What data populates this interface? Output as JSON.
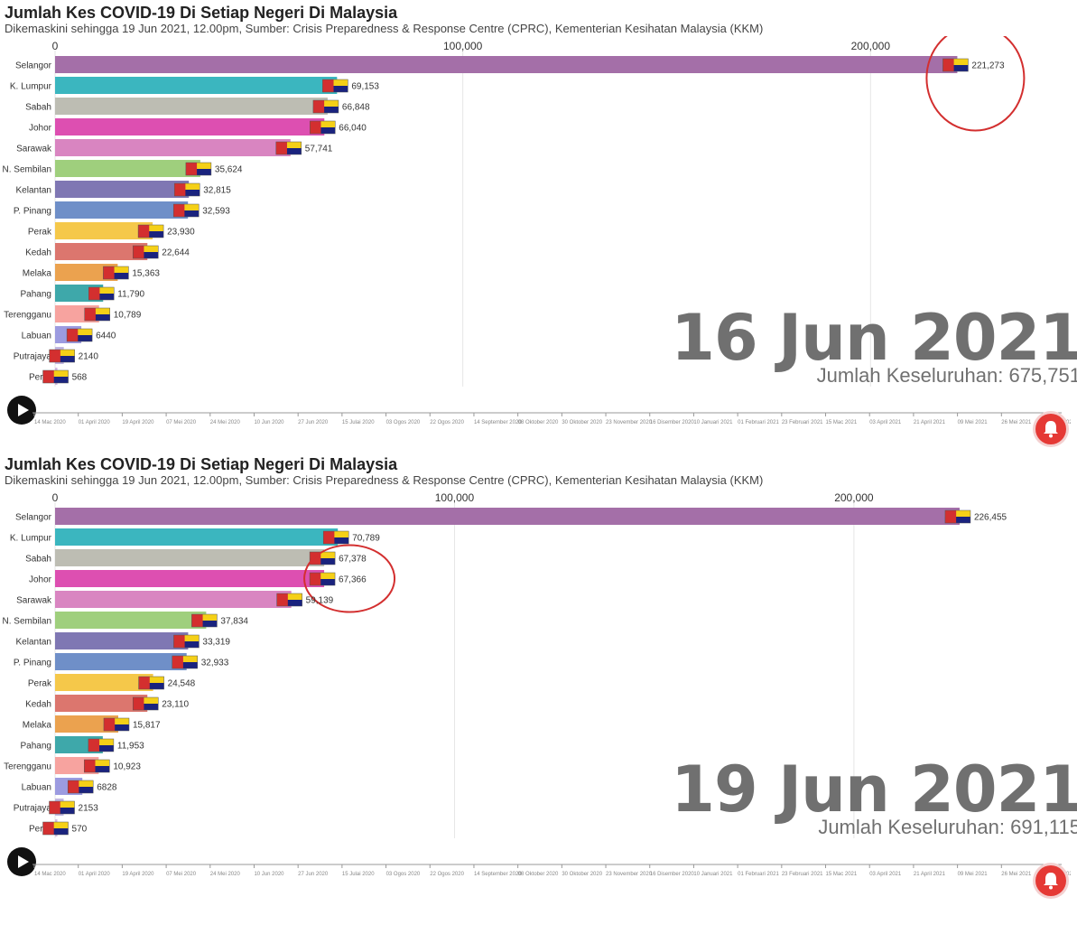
{
  "panels": [
    {
      "title": "Jumlah Kes COVID-19 Di Setiap Negeri Di Malaysia",
      "subtitle": "Dikemaskini sehingga 19 Jun 2021, 12.00pm, Sumber: Crisis Preparedness & Response Centre (CPRC), Kementerian Kesihatan Malaysia (KKM)",
      "date": "16 Jun 2021",
      "total": "Jumlah Keseluruhan: 675,751",
      "highlight": "Selangor"
    },
    {
      "title": "Jumlah Kes COVID-19 Di Setiap Negeri Di Malaysia",
      "subtitle": "Dikemaskini sehingga 19 Jun 2021, 12.00pm, Sumber: Crisis Preparedness & Response Centre (CPRC), Kementerian Kesihatan Malaysia (KKM)",
      "date": "19 Jun 2021",
      "total": "Jumlah Keseluruhan: 691,115",
      "highlight": "Johor"
    }
  ],
  "timeline_labels": [
    "14 Mac 2020",
    "01 April 2020",
    "19 April 2020",
    "07 Mei 2020",
    "24 Mei 2020",
    "10 Jun 2020",
    "27 Jun 2020",
    "15 Julai 2020",
    "03 Ogos 2020",
    "22 Ogos 2020",
    "14 September 2020",
    "08 Oktober 2020",
    "30 Oktober 2020",
    "23 November 2020",
    "16 Disember 2020",
    "10 Januari 2021",
    "01 Februari 2021",
    "23 Februari 2021",
    "15 Mac 2021",
    "03 April 2021",
    "21 April 2021",
    "09 Mei 2021",
    "26 Mei 2021",
    "12 Jun 2021"
  ],
  "colors": {
    "Selangor": "#a46fa8",
    "K. Lumpur": "#3bb6bf",
    "Sabah": "#bdbdb3",
    "Johor": "#dd4fb1",
    "Sarawak": "#d985c1",
    "N. Sembilan": "#9fcf7d",
    "Kelantan": "#7f77b3",
    "P. Pinang": "#6f8fc8",
    "Perak": "#f5c84a",
    "Kedah": "#dc766e",
    "Melaka": "#eba24f",
    "Pahang": "#3ea8aa",
    "Terengganu": "#f7a39f",
    "Labuan": "#9c9be0",
    "Putrajaya": "#c2b7e1",
    "Perlis": "#d5b9de",
    "highlight_circle": "#d32f2f",
    "bell": "#e53935"
  },
  "chart_data": [
    {
      "type": "bar",
      "orientation": "horizontal",
      "categories": [
        "Selangor",
        "K. Lumpur",
        "Sabah",
        "Johor",
        "Sarawak",
        "N. Sembilan",
        "Kelantan",
        "P. Pinang",
        "Perak",
        "Kedah",
        "Melaka",
        "Pahang",
        "Terengganu",
        "Labuan",
        "Putrajaya",
        "Perlis"
      ],
      "values": [
        221273,
        69153,
        66848,
        66040,
        57741,
        35624,
        32815,
        32593,
        23930,
        22644,
        15363,
        11790,
        10789,
        6440,
        2140,
        568
      ],
      "value_labels": [
        "221,273",
        "69,153",
        "66,848",
        "66,040",
        "57,741",
        "35,624",
        "32,815",
        "32,593",
        "23,930",
        "22,644",
        "15,363",
        "11,790",
        "10,789",
        "6440",
        "2140",
        "568"
      ],
      "xticks": [
        0,
        100000,
        200000
      ],
      "xtick_labels": [
        "0",
        "100,000",
        "200,000"
      ],
      "xlim": [
        0,
        240000
      ],
      "grid": true
    },
    {
      "type": "bar",
      "orientation": "horizontal",
      "categories": [
        "Selangor",
        "K. Lumpur",
        "Sabah",
        "Johor",
        "Sarawak",
        "N. Sembilan",
        "Kelantan",
        "P. Pinang",
        "Perak",
        "Kedah",
        "Melaka",
        "Pahang",
        "Terengganu",
        "Labuan",
        "Putrajaya",
        "Perlis"
      ],
      "values": [
        226455,
        70789,
        67378,
        67366,
        59139,
        37834,
        33319,
        32933,
        24548,
        23110,
        15817,
        11953,
        10923,
        6828,
        2153,
        570
      ],
      "value_labels": [
        "226,455",
        "70,789",
        "67,378",
        "67,366",
        "59,139",
        "37,834",
        "33,319",
        "32,933",
        "24,548",
        "23,110",
        "15,817",
        "11,953",
        "10,923",
        "6828",
        "2153",
        "570"
      ],
      "xticks": [
        0,
        100000,
        200000
      ],
      "xtick_labels": [
        "0",
        "100,000",
        "200,000"
      ],
      "xlim": [
        0,
        245000
      ],
      "grid": true
    }
  ]
}
